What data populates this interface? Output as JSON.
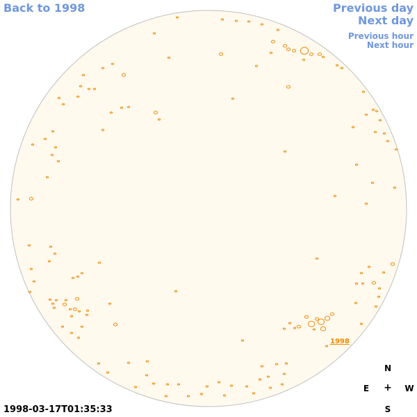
{
  "nav": {
    "back": "Back to 1998",
    "previous_day": "Previous day",
    "next_day": "Next day",
    "previous_hour": "Previous hour",
    "next_hour": "Next hour"
  },
  "compass": {
    "north": "N",
    "east": "E",
    "center": "+",
    "west": "W",
    "south": "S"
  },
  "timestamp": "1998-03-17T01:35:33",
  "region_label": "1998",
  "colors": {
    "disk_fill": "#fff9ee",
    "limb": "#c0c0c0",
    "contour": "#f08a00",
    "nav": "#6f97e0"
  }
}
